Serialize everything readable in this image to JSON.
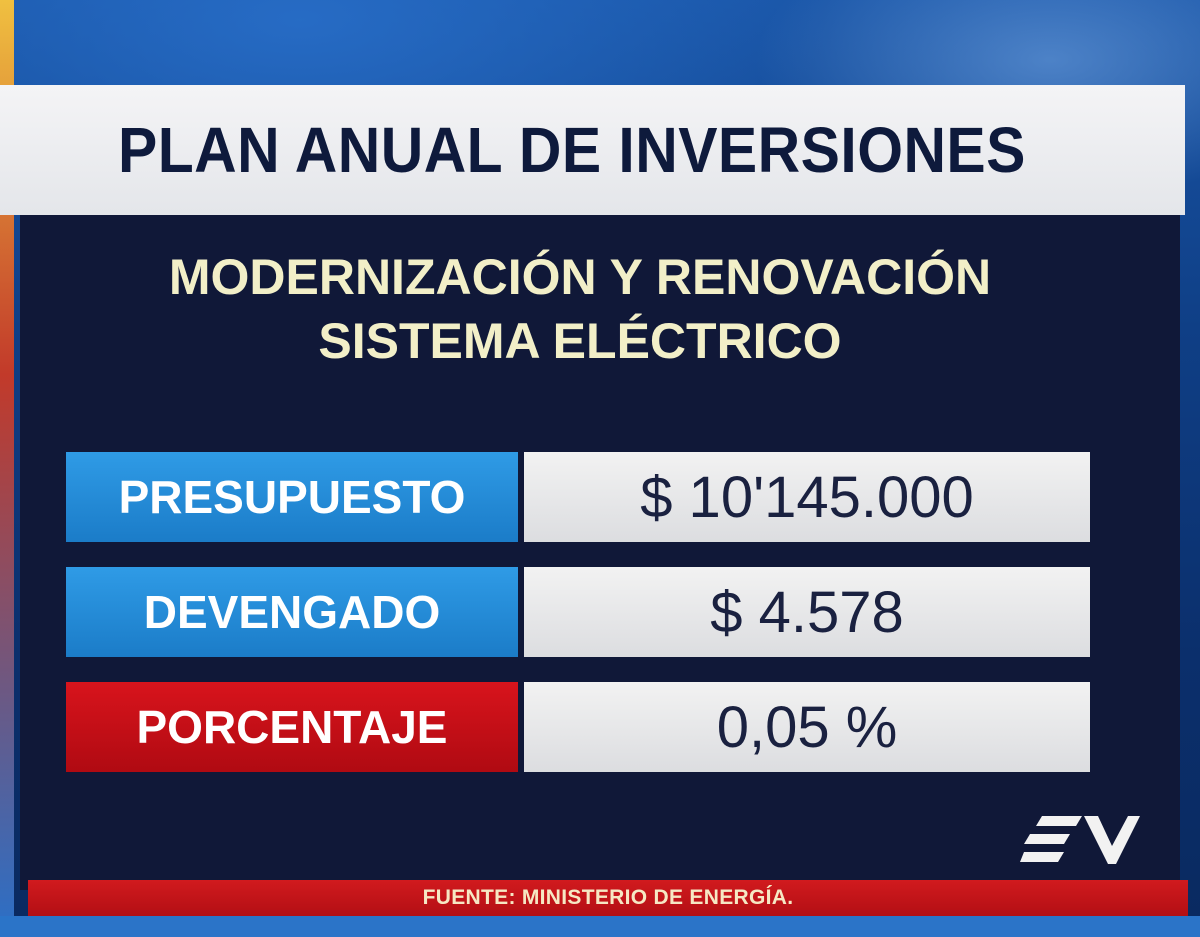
{
  "header": {
    "title": "PLAN ANUAL DE INVERSIONES"
  },
  "subtitle": {
    "line1": "MODERNIZACIÓN Y RENOVACIÓN",
    "line2": "SISTEMA ELÉCTRICO"
  },
  "table": {
    "rows": [
      {
        "label": "PRESUPUESTO",
        "value": "$ 10'145.000",
        "color": "#2a8fdc"
      },
      {
        "label": "DEVENGADO",
        "value": "$ 4.578",
        "color": "#2a8fdc"
      },
      {
        "label": "PORCENTAJE",
        "value": "0,05 %",
        "color": "#c8101a"
      }
    ]
  },
  "footer": {
    "source": "FUENTE: MINISTERIO DE ENERGÍA."
  },
  "branding": {
    "logo": "ecuavisa-ev-logo-icon"
  }
}
